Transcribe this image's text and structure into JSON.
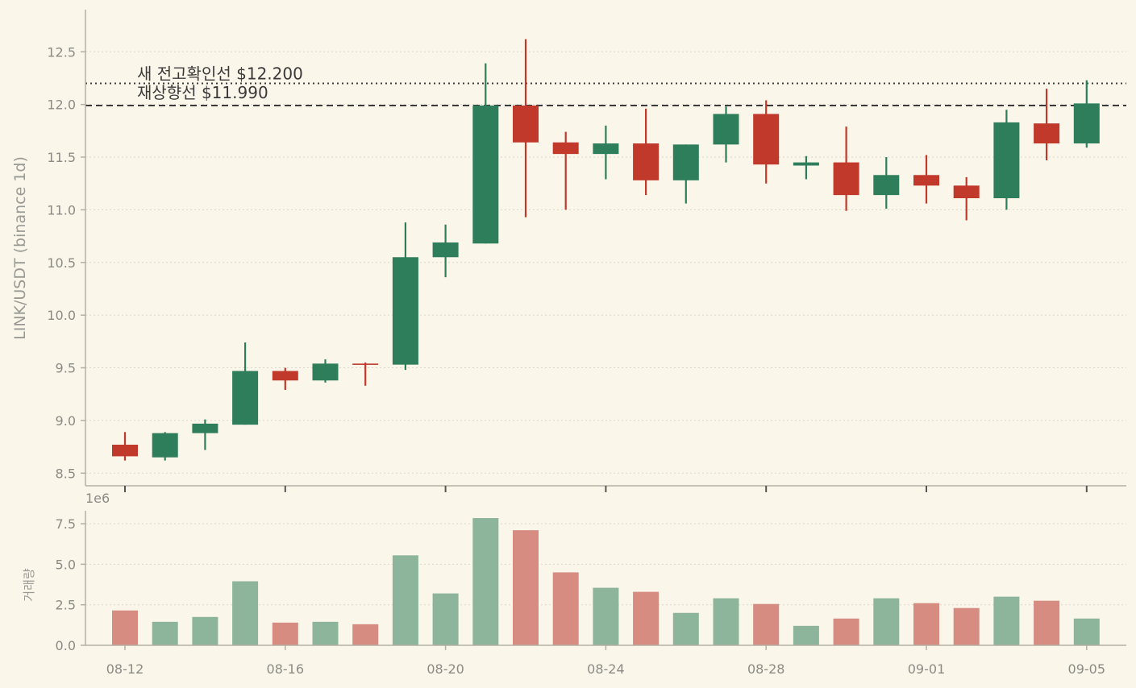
{
  "chart_data": {
    "type": "candlestick",
    "ylabel": "LINK/USDT (binance 1d)",
    "volume_label": "거래량",
    "volume_exponent": "1e6",
    "dates": [
      "08-12",
      "08-13",
      "08-14",
      "08-15",
      "08-16",
      "08-17",
      "08-18",
      "08-19",
      "08-20",
      "08-21",
      "08-22",
      "08-23",
      "08-24",
      "08-25",
      "08-26",
      "08-27",
      "08-28",
      "08-29",
      "08-30",
      "08-31",
      "09-01",
      "09-02",
      "09-03",
      "09-04",
      "09-05"
    ],
    "x_tick_labels": [
      "08-12",
      "08-16",
      "08-20",
      "08-24",
      "08-28",
      "09-01",
      "09-05"
    ],
    "price_ticks": [
      8.5,
      9.0,
      9.5,
      10.0,
      10.5,
      11.0,
      11.5,
      12.0,
      12.5
    ],
    "price_tick_labels": [
      "8.5",
      "9.0",
      "9.5",
      "10.0",
      "10.5",
      "11.0",
      "11.5",
      "12.0",
      "12.5"
    ],
    "ylim": [
      8.38,
      12.9
    ],
    "volume_ticks": [
      0,
      2.5,
      5.0,
      7.5
    ],
    "volume_tick_labels": [
      "0.0",
      "2.5",
      "5.0",
      "7.5"
    ],
    "volume_ylim": [
      0,
      8.3
    ],
    "candles": [
      {
        "o": 8.77,
        "h": 8.89,
        "l": 8.62,
        "c": 8.66
      },
      {
        "o": 8.65,
        "h": 8.89,
        "l": 8.62,
        "c": 8.88
      },
      {
        "o": 8.88,
        "h": 9.01,
        "l": 8.72,
        "c": 8.97
      },
      {
        "o": 8.96,
        "h": 9.74,
        "l": 8.96,
        "c": 9.47
      },
      {
        "o": 9.47,
        "h": 9.5,
        "l": 9.29,
        "c": 9.38
      },
      {
        "o": 9.38,
        "h": 9.58,
        "l": 9.36,
        "c": 9.54
      },
      {
        "o": 9.54,
        "h": 9.55,
        "l": 9.33,
        "c": 9.53
      },
      {
        "o": 9.53,
        "h": 10.88,
        "l": 9.48,
        "c": 10.55
      },
      {
        "o": 10.55,
        "h": 10.86,
        "l": 10.36,
        "c": 10.69
      },
      {
        "o": 10.68,
        "h": 12.39,
        "l": 10.68,
        "c": 11.99
      },
      {
        "o": 11.99,
        "h": 12.62,
        "l": 10.93,
        "c": 11.64
      },
      {
        "o": 11.64,
        "h": 11.74,
        "l": 11.0,
        "c": 11.53
      },
      {
        "o": 11.53,
        "h": 11.8,
        "l": 11.29,
        "c": 11.63
      },
      {
        "o": 11.63,
        "h": 11.96,
        "l": 11.14,
        "c": 11.28
      },
      {
        "o": 11.28,
        "h": 11.62,
        "l": 11.06,
        "c": 11.62
      },
      {
        "o": 11.62,
        "h": 11.98,
        "l": 11.45,
        "c": 11.91
      },
      {
        "o": 11.91,
        "h": 12.04,
        "l": 11.25,
        "c": 11.43
      },
      {
        "o": 11.42,
        "h": 11.51,
        "l": 11.29,
        "c": 11.45
      },
      {
        "o": 11.45,
        "h": 11.79,
        "l": 10.99,
        "c": 11.14
      },
      {
        "o": 11.14,
        "h": 11.5,
        "l": 11.01,
        "c": 11.33
      },
      {
        "o": 11.33,
        "h": 11.52,
        "l": 11.06,
        "c": 11.23
      },
      {
        "o": 11.23,
        "h": 11.31,
        "l": 10.9,
        "c": 11.11
      },
      {
        "o": 11.11,
        "h": 11.95,
        "l": 11.0,
        "c": 11.83
      },
      {
        "o": 11.82,
        "h": 12.15,
        "l": 11.47,
        "c": 11.63
      },
      {
        "o": 11.63,
        "h": 12.23,
        "l": 11.59,
        "c": 12.01
      }
    ],
    "volumes": [
      2.15,
      1.45,
      1.75,
      3.95,
      1.4,
      1.45,
      1.3,
      5.55,
      3.2,
      7.85,
      7.1,
      4.5,
      3.55,
      3.3,
      2.0,
      2.9,
      2.55,
      1.2,
      1.65,
      2.9,
      2.6,
      2.3,
      3.0,
      2.75,
      1.65
    ],
    "reference_lines": [
      {
        "label": "새 전고확인선 $12.200",
        "value": 12.2,
        "style": "dotted"
      },
      {
        "label": "재상향선 $11.990",
        "value": 11.99,
        "style": "dashed"
      }
    ],
    "colors": {
      "up": "#2e7d5b",
      "down": "#c0392b",
      "up_volume": "#8db59b",
      "down_volume": "#d68c80",
      "background": "#faf6ea",
      "axis": "#b5b0a3",
      "grid": "#d9d6cc",
      "reference": "#3a3a3a"
    },
    "grid": true
  }
}
